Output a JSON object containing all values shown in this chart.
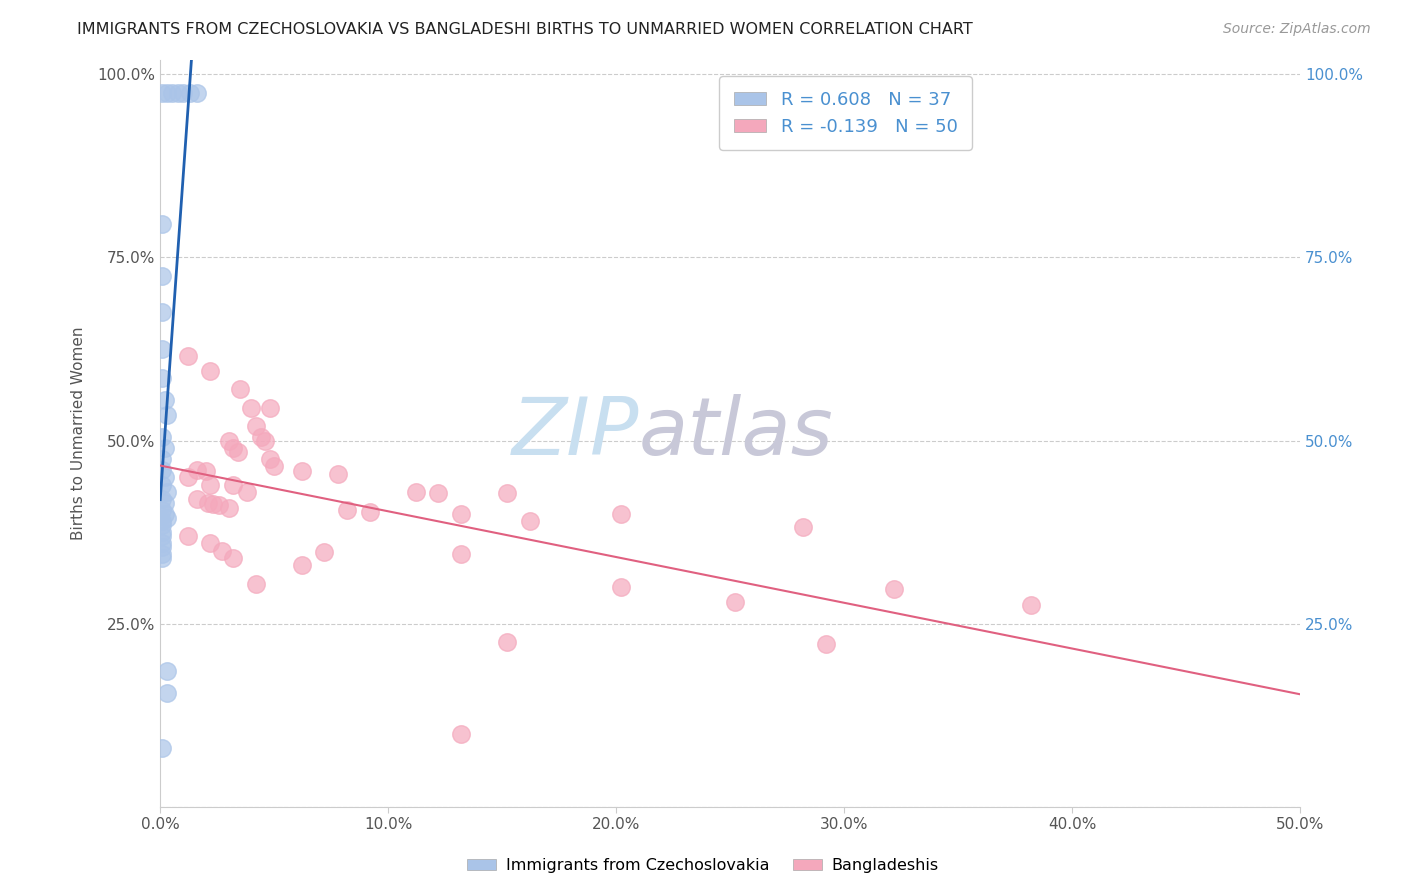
{
  "title": "IMMIGRANTS FROM CZECHOSLOVAKIA VS BANGLADESHI BIRTHS TO UNMARRIED WOMEN CORRELATION CHART",
  "source": "Source: ZipAtlas.com",
  "ylabel_label": "Births to Unmarried Women",
  "legend_label1": "Immigrants from Czechoslovakia",
  "legend_label2": "Bangladeshis",
  "R1": 0.608,
  "N1": 37,
  "R2": -0.139,
  "N2": 50,
  "color_blue": "#aac4e8",
  "color_pink": "#f4a8bc",
  "color_blue_line": "#2060b0",
  "color_pink_line": "#e06080",
  "watermark_zip_color": "#c8dff0",
  "watermark_atlas_color": "#c8c8d8",
  "blue_points": [
    [
      0.001,
      0.975
    ],
    [
      0.003,
      0.975
    ],
    [
      0.005,
      0.975
    ],
    [
      0.008,
      0.975
    ],
    [
      0.01,
      0.975
    ],
    [
      0.013,
      0.975
    ],
    [
      0.016,
      0.975
    ],
    [
      0.001,
      0.795
    ],
    [
      0.001,
      0.725
    ],
    [
      0.001,
      0.675
    ],
    [
      0.001,
      0.625
    ],
    [
      0.001,
      0.585
    ],
    [
      0.002,
      0.555
    ],
    [
      0.003,
      0.535
    ],
    [
      0.001,
      0.505
    ],
    [
      0.002,
      0.49
    ],
    [
      0.001,
      0.475
    ],
    [
      0.001,
      0.46
    ],
    [
      0.002,
      0.45
    ],
    [
      0.001,
      0.44
    ],
    [
      0.003,
      0.43
    ],
    [
      0.001,
      0.42
    ],
    [
      0.002,
      0.415
    ],
    [
      0.001,
      0.405
    ],
    [
      0.002,
      0.4
    ],
    [
      0.003,
      0.395
    ],
    [
      0.001,
      0.39
    ],
    [
      0.001,
      0.385
    ],
    [
      0.001,
      0.375
    ],
    [
      0.001,
      0.37
    ],
    [
      0.001,
      0.36
    ],
    [
      0.001,
      0.355
    ],
    [
      0.001,
      0.345
    ],
    [
      0.001,
      0.34
    ],
    [
      0.003,
      0.185
    ],
    [
      0.003,
      0.155
    ],
    [
      0.001,
      0.08
    ]
  ],
  "pink_points": [
    [
      0.012,
      0.615
    ],
    [
      0.022,
      0.595
    ],
    [
      0.035,
      0.57
    ],
    [
      0.04,
      0.545
    ],
    [
      0.048,
      0.545
    ],
    [
      0.042,
      0.52
    ],
    [
      0.044,
      0.505
    ],
    [
      0.046,
      0.5
    ],
    [
      0.03,
      0.5
    ],
    [
      0.032,
      0.49
    ],
    [
      0.034,
      0.485
    ],
    [
      0.048,
      0.475
    ],
    [
      0.05,
      0.465
    ],
    [
      0.016,
      0.46
    ],
    [
      0.02,
      0.458
    ],
    [
      0.062,
      0.458
    ],
    [
      0.078,
      0.455
    ],
    [
      0.012,
      0.45
    ],
    [
      0.022,
      0.44
    ],
    [
      0.032,
      0.44
    ],
    [
      0.038,
      0.43
    ],
    [
      0.112,
      0.43
    ],
    [
      0.122,
      0.428
    ],
    [
      0.152,
      0.428
    ],
    [
      0.016,
      0.42
    ],
    [
      0.021,
      0.415
    ],
    [
      0.023,
      0.413
    ],
    [
      0.026,
      0.412
    ],
    [
      0.03,
      0.408
    ],
    [
      0.082,
      0.405
    ],
    [
      0.092,
      0.402
    ],
    [
      0.132,
      0.4
    ],
    [
      0.202,
      0.4
    ],
    [
      0.162,
      0.39
    ],
    [
      0.282,
      0.382
    ],
    [
      0.012,
      0.37
    ],
    [
      0.022,
      0.36
    ],
    [
      0.027,
      0.35
    ],
    [
      0.072,
      0.348
    ],
    [
      0.132,
      0.345
    ],
    [
      0.032,
      0.34
    ],
    [
      0.062,
      0.33
    ],
    [
      0.042,
      0.305
    ],
    [
      0.202,
      0.3
    ],
    [
      0.322,
      0.298
    ],
    [
      0.252,
      0.28
    ],
    [
      0.382,
      0.275
    ],
    [
      0.152,
      0.225
    ],
    [
      0.292,
      0.222
    ],
    [
      0.132,
      0.1
    ]
  ],
  "xlim": [
    0.0,
    0.5
  ],
  "ylim": [
    0.0,
    1.02
  ],
  "xtick_vals": [
    0.0,
    0.1,
    0.2,
    0.3,
    0.4,
    0.5
  ],
  "xtick_labels": [
    "0.0%",
    "10.0%",
    "20.0%",
    "30.0%",
    "40.0%",
    "50.0%"
  ],
  "ytick_vals": [
    0.0,
    0.25,
    0.5,
    0.75,
    1.0
  ],
  "ytick_labels": [
    "",
    "25.0%",
    "50.0%",
    "75.0%",
    "100.0%"
  ]
}
